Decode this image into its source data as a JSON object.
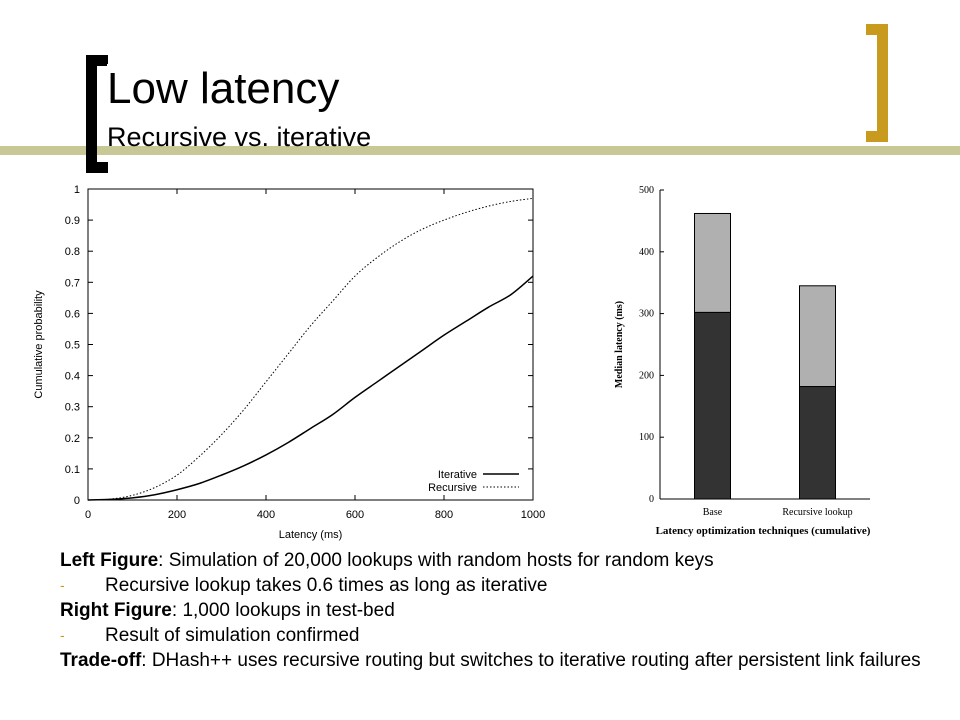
{
  "header": {
    "title": "Low latency",
    "subtitle": "Recursive vs. iterative"
  },
  "colors": {
    "accent_line": "#c8c896",
    "left_bracket": "#000000",
    "right_bracket": "#c89b1e",
    "bar_dark": "#333333",
    "bar_light": "#b0b0b0"
  },
  "chart_data": [
    {
      "type": "line",
      "title": "",
      "xlabel": "Latency (ms)",
      "ylabel": "Cumulative probability",
      "xlim": [
        0,
        1000
      ],
      "ylim": [
        0,
        1
      ],
      "x_ticks": [
        "0",
        "200",
        "400",
        "600",
        "800",
        "1000"
      ],
      "y_ticks": [
        "0",
        "0.1",
        "0.2",
        "0.3",
        "0.4",
        "0.5",
        "0.6",
        "0.7",
        "0.8",
        "0.9",
        "1"
      ],
      "legend_position": "bottom-right",
      "series": [
        {
          "name": "Iterative",
          "style": "solid",
          "x": [
            0,
            50,
            100,
            150,
            200,
            250,
            300,
            350,
            400,
            450,
            500,
            550,
            600,
            650,
            700,
            750,
            800,
            850,
            900,
            950,
            1000
          ],
          "y": [
            0,
            0.002,
            0.007,
            0.017,
            0.033,
            0.053,
            0.08,
            0.11,
            0.145,
            0.185,
            0.23,
            0.275,
            0.33,
            0.38,
            0.43,
            0.48,
            0.53,
            0.575,
            0.62,
            0.66,
            0.72
          ]
        },
        {
          "name": "Recursive",
          "style": "dotted",
          "x": [
            0,
            50,
            100,
            150,
            200,
            250,
            300,
            350,
            400,
            450,
            500,
            550,
            600,
            650,
            700,
            750,
            800,
            850,
            900,
            950,
            1000
          ],
          "y": [
            0,
            0.003,
            0.015,
            0.04,
            0.08,
            0.14,
            0.21,
            0.29,
            0.38,
            0.47,
            0.56,
            0.64,
            0.72,
            0.78,
            0.83,
            0.87,
            0.9,
            0.925,
            0.945,
            0.96,
            0.97
          ]
        }
      ]
    },
    {
      "type": "bar",
      "stacked": true,
      "title": "",
      "xlabel": "Latency optimization techniques (cumulative)",
      "ylabel": "Median latency (ms)",
      "ylim": [
        0,
        500
      ],
      "y_ticks": [
        "0",
        "100",
        "200",
        "300",
        "400",
        "500"
      ],
      "categories": [
        "Base",
        "Recursive lookup"
      ],
      "series": [
        {
          "values": [
            302,
            182
          ]
        },
        {
          "values": [
            160,
            163
          ]
        }
      ]
    }
  ],
  "caption": {
    "left_label": "Left Figure",
    "left_text": ": Simulation of 20,000 lookups with random hosts for random keys",
    "left_point": "Recursive lookup takes 0.6 times as long as iterative",
    "right_label": "Right Figure",
    "right_text": ": 1,000 lookups in test-bed",
    "right_point": "Result of simulation confirmed",
    "tradeoff_label": "Trade-off",
    "tradeoff_text": ": DHash++ uses recursive routing but switches to iterative routing after persistent link failures",
    "bullet_glyph": "-"
  }
}
